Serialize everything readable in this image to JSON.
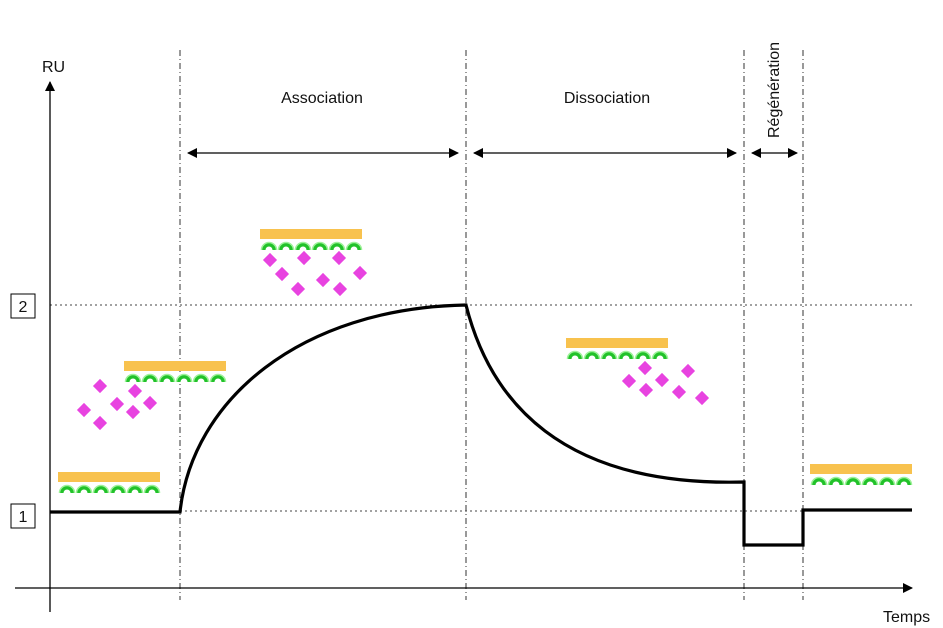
{
  "axis": {
    "y_label": "RU",
    "x_label": "Temps"
  },
  "levels": [
    "1",
    "2"
  ],
  "phases": [
    "Association",
    "Dissociation",
    "Régénération"
  ]
}
